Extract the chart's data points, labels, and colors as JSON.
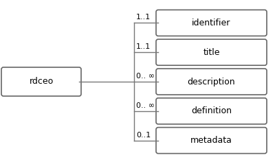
{
  "background_color": "#ffffff",
  "root_label": "rdceo",
  "children": [
    {
      "label": "identifier",
      "multiplicity": "1..1"
    },
    {
      "label": "title",
      "multiplicity": "1..1"
    },
    {
      "label": "description",
      "multiplicity": "0.. ∞"
    },
    {
      "label": "definition",
      "multiplicity": "0.. ∞"
    },
    {
      "label": "metadata",
      "multiplicity": "0..1"
    }
  ],
  "connector_color": "#777777",
  "box_edge_color": "#666666",
  "text_color": "#000000",
  "font_size": 9,
  "multiplicity_font_size": 8
}
